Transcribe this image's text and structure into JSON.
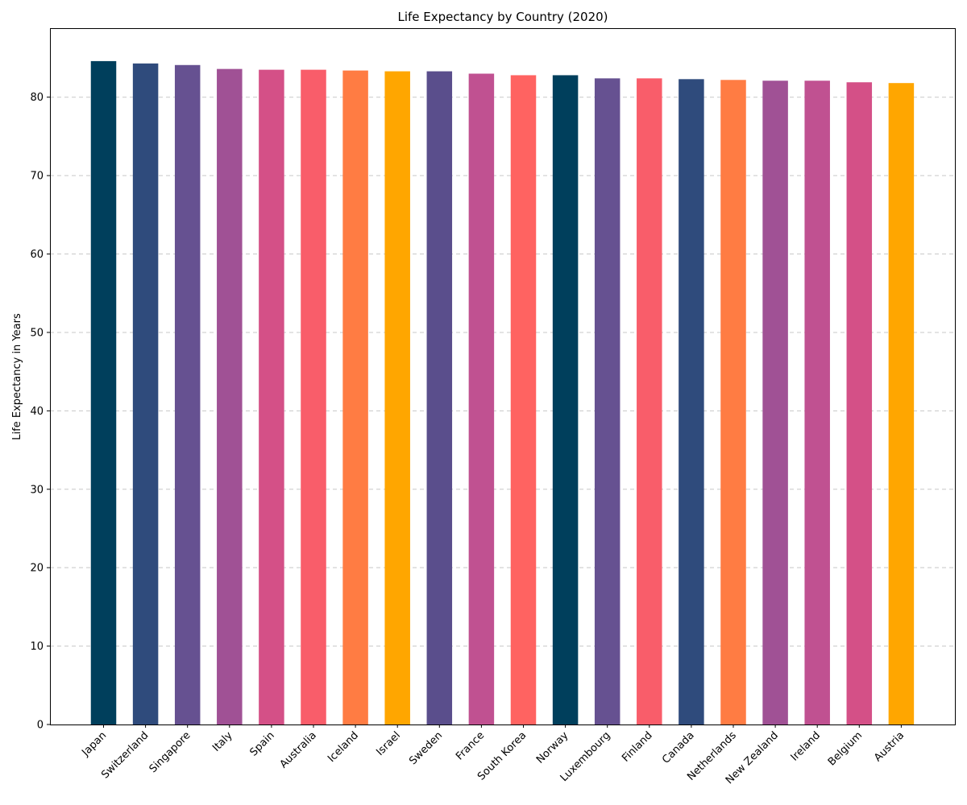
{
  "chart_data": {
    "type": "bar",
    "title": "Life Expectancy by Country (2020)",
    "xlabel": "",
    "ylabel": "Life Expectancy in Years",
    "ylim": [
      0,
      88.8
    ],
    "yticks": [
      0,
      10,
      20,
      30,
      40,
      50,
      60,
      70,
      80
    ],
    "grid": "y-dashed",
    "categories": [
      "Japan",
      "Switzerland",
      "Singapore",
      "Italy",
      "Spain",
      "Australia",
      "Iceland",
      "Israel",
      "Sweden",
      "France",
      "South Korea",
      "Norway",
      "Luxembourg",
      "Finland",
      "Canada",
      "Netherlands",
      "New Zealand",
      "Ireland",
      "Belgium",
      "Austria"
    ],
    "values": [
      84.6,
      84.3,
      84.1,
      83.6,
      83.5,
      83.5,
      83.4,
      83.3,
      83.3,
      83.0,
      82.8,
      82.8,
      82.4,
      82.4,
      82.3,
      82.2,
      82.1,
      82.1,
      81.9,
      81.8
    ],
    "colors": [
      "#003f5c",
      "#2f4b7c",
      "#665191",
      "#a05195",
      "#d45087",
      "#f95d6a",
      "#ff7c43",
      "#ffa600",
      "#5a4e8c",
      "#c05191",
      "#ff6361",
      "#003f5c",
      "#665191",
      "#f95d6a",
      "#2f4b7c",
      "#ff7c43",
      "#a05195",
      "#c05191",
      "#d45087",
      "#ffa600"
    ]
  }
}
